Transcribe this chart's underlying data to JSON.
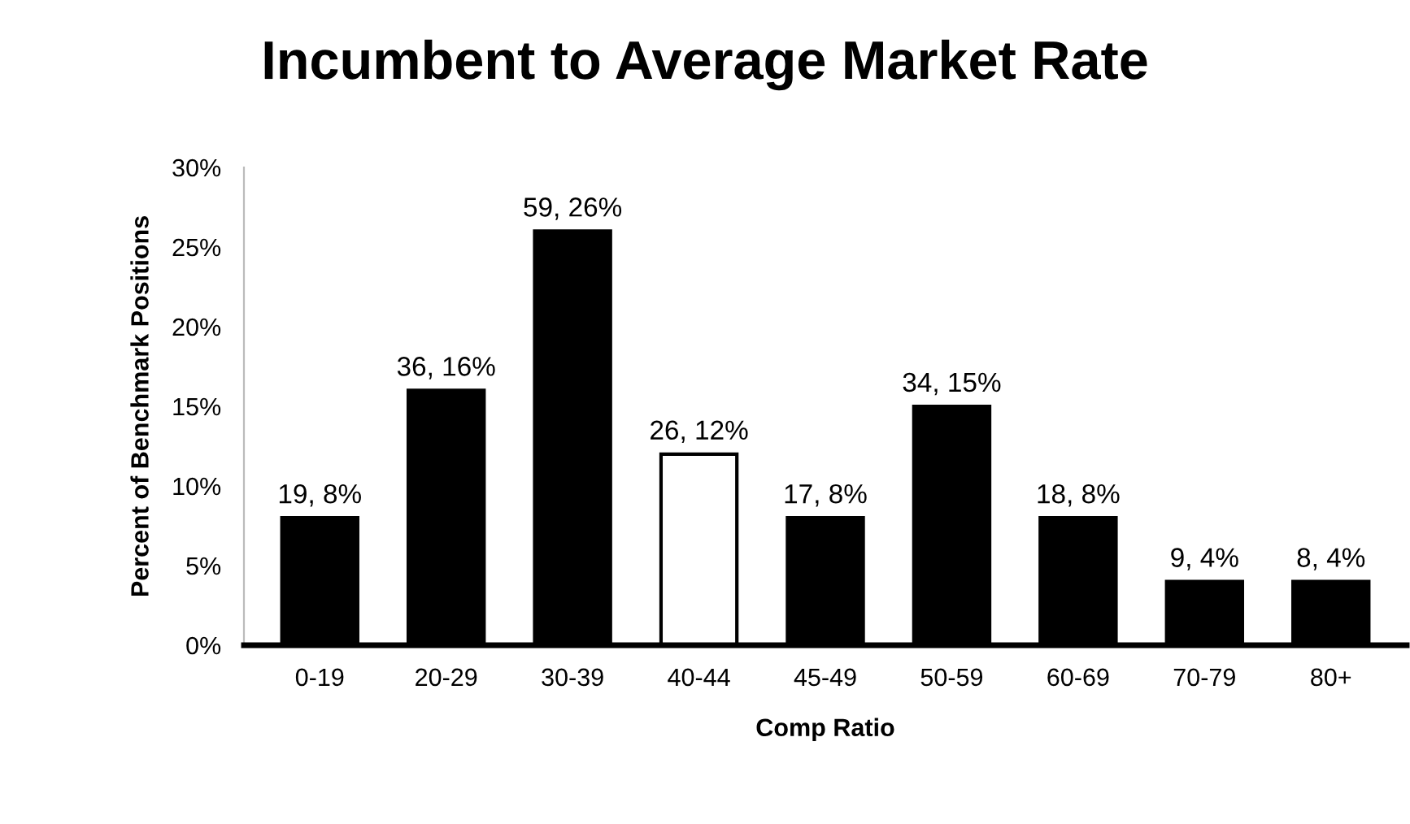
{
  "chart_data": {
    "type": "bar",
    "title": "Incumbent to Average Market Rate",
    "xlabel": "Comp Ratio",
    "ylabel": "Percent of Benchmark Positions",
    "categories": [
      "0-19",
      "20-29",
      "30-39",
      "40-44",
      "45-49",
      "50-59",
      "60-69",
      "70-79",
      "80+"
    ],
    "values": [
      8,
      16,
      26,
      12,
      8,
      15,
      8,
      4,
      4
    ],
    "value_labels": [
      "19, 8%",
      "36, 16%",
      "59, 26%",
      "26, 12%",
      "17, 8%",
      "34, 15%",
      "18, 8%",
      "9, 4%",
      "8, 4%"
    ],
    "colors": [
      "#000000",
      "#000000",
      "#000000",
      "#ffffff",
      "#000000",
      "#000000",
      "#000000",
      "#000000",
      "#000000"
    ],
    "ylim": [
      0,
      30
    ],
    "yticks": [
      {
        "value": 0,
        "label": "0%"
      },
      {
        "value": 5,
        "label": "5%"
      },
      {
        "value": 10,
        "label": "10%"
      },
      {
        "value": 15,
        "label": "15%"
      },
      {
        "value": 20,
        "label": "20%"
      },
      {
        "value": 25,
        "label": "25%"
      },
      {
        "value": 30,
        "label": "30%"
      }
    ],
    "grid": false,
    "legend": false
  }
}
